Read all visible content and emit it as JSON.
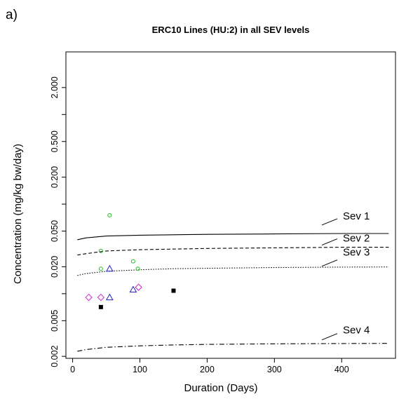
{
  "panel_label": "a)",
  "chart_data": {
    "type": "line",
    "title": "ERC10 Lines (HU:2) in all SEV levels",
    "xlabel": "Duration (Days)",
    "ylabel": "Concentration (mg/kg bw/day)",
    "xlim": [
      -10,
      480
    ],
    "ylim": [
      0.0019,
      5.0
    ],
    "yscale": "log",
    "grid": false,
    "legend": "none",
    "x_ticks": [
      0,
      100,
      200,
      300,
      400
    ],
    "x_tick_labels": [
      "0",
      "100",
      "200",
      "300",
      "400"
    ],
    "y_ticks": [
      0.002,
      0.005,
      0.02,
      0.05,
      0.2,
      0.5,
      2.0
    ],
    "y_tick_labels": [
      "0.002",
      "0.005",
      "0.020",
      "0.050",
      "0.200",
      "0.500",
      "2.000"
    ],
    "y_minor_ticks": [
      0.01,
      0.1,
      1.0
    ],
    "series": [
      {
        "name": "Sev 1",
        "style": "solid",
        "color": "#000000",
        "x": [
          7,
          20,
          50,
          100,
          150,
          200,
          300,
          400,
          470
        ],
        "y": [
          0.04,
          0.042,
          0.044,
          0.045,
          0.0455,
          0.046,
          0.0465,
          0.047,
          0.047
        ]
      },
      {
        "name": "Sev 2",
        "style": "dashed",
        "color": "#000000",
        "x": [
          7,
          20,
          50,
          100,
          150,
          200,
          300,
          400,
          470
        ],
        "y": [
          0.027,
          0.028,
          0.03,
          0.031,
          0.0315,
          0.032,
          0.0325,
          0.033,
          0.033
        ]
      },
      {
        "name": "Sev 3",
        "style": "dotted",
        "color": "#000000",
        "x": [
          7,
          20,
          50,
          100,
          150,
          200,
          300,
          400,
          470
        ],
        "y": [
          0.016,
          0.0168,
          0.0178,
          0.0185,
          0.019,
          0.0192,
          0.0196,
          0.0198,
          0.0199
        ]
      },
      {
        "name": "Sev 4",
        "style": "dotdash",
        "color": "#000000",
        "x": [
          7,
          20,
          50,
          100,
          150,
          200,
          300,
          400,
          470
        ],
        "y": [
          0.00228,
          0.00238,
          0.00252,
          0.00262,
          0.00268,
          0.00272,
          0.00276,
          0.00278,
          0.00279
        ]
      }
    ],
    "points": [
      {
        "marker": "circle",
        "color": "#22bb22",
        "x": 55,
        "y": 0.075
      },
      {
        "marker": "circle",
        "color": "#22bb22",
        "x": 42,
        "y": 0.03
      },
      {
        "marker": "circle",
        "color": "#22bb22",
        "x": 42,
        "y": 0.019
      },
      {
        "marker": "circle",
        "color": "#22bb22",
        "x": 90,
        "y": 0.023
      },
      {
        "marker": "circle",
        "color": "#22bb22",
        "x": 97,
        "y": 0.019
      },
      {
        "marker": "triangle",
        "color": "#2222cc",
        "x": 55,
        "y": 0.019
      },
      {
        "marker": "triangle",
        "color": "#2222cc",
        "x": 55,
        "y": 0.0091
      },
      {
        "marker": "triangle",
        "color": "#2222cc",
        "x": 90,
        "y": 0.0111
      },
      {
        "marker": "diamond",
        "color": "#cc22cc",
        "x": 24,
        "y": 0.0091
      },
      {
        "marker": "diamond",
        "color": "#cc22cc",
        "x": 42,
        "y": 0.0091
      },
      {
        "marker": "diamond",
        "color": "#cc22cc",
        "x": 98,
        "y": 0.0118
      },
      {
        "marker": "square",
        "color": "#000000",
        "x": 42,
        "y": 0.0071
      },
      {
        "marker": "square",
        "color": "#000000",
        "x": 150,
        "y": 0.0108
      }
    ],
    "annotations": [
      "Sev 1",
      "Sev 2",
      "Sev 3",
      "Sev 4"
    ]
  }
}
